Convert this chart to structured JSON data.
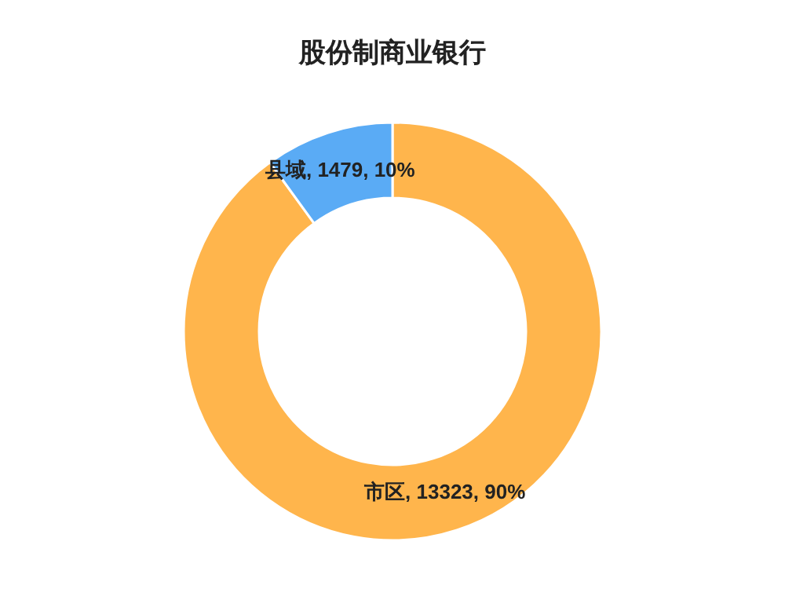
{
  "chart_data": {
    "type": "donut",
    "title": "股份制商业银行",
    "categories": [
      "市区",
      "县域"
    ],
    "values": [
      13323,
      1479
    ],
    "colors": [
      "#ffb54c",
      "#5aabf5"
    ],
    "value_labels": [
      "13323, 90%",
      "1479, 10%"
    ],
    "legend": false
  }
}
